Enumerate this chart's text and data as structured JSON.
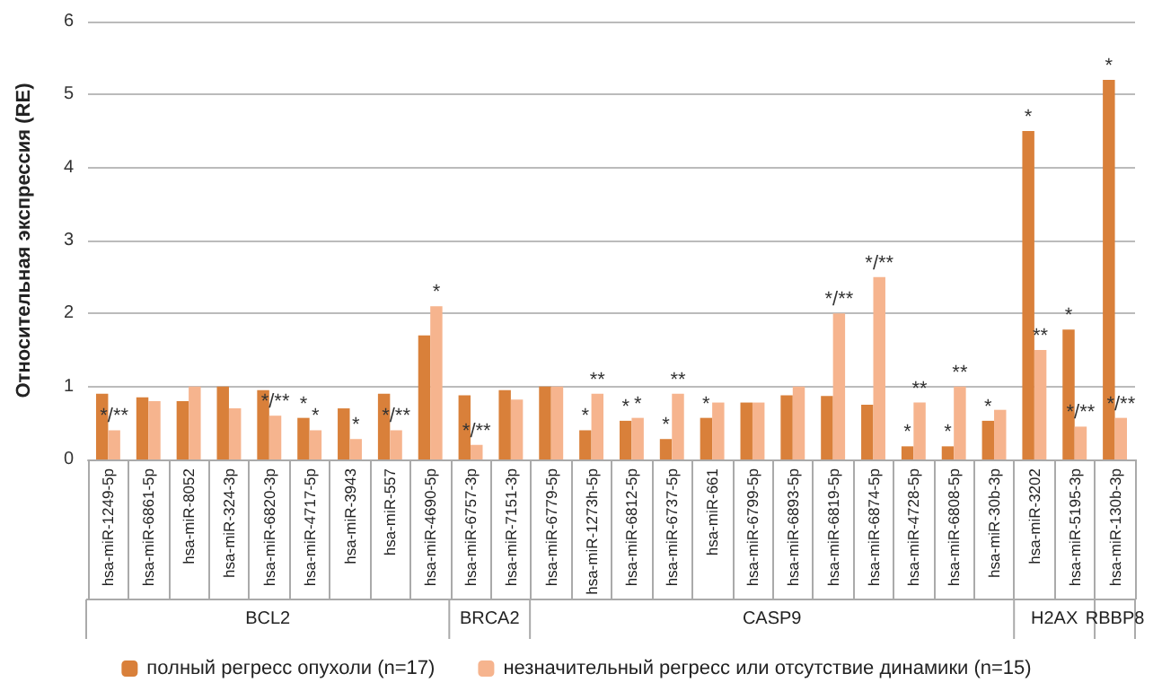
{
  "chart_data": {
    "type": "bar",
    "ylabel": "Относительная экспрессия (RE)",
    "categories": [
      "hsa-miR-1249-5p",
      "hsa-miR-6861-5p",
      "hsa-miR-8052",
      "hsa-miR-324-3p",
      "hsa-miR-6820-3p",
      "hsa-miR-4717-5p",
      "hsa-miR-3943",
      "hsa-miR-557",
      "hsa-miR-4690-5p",
      "hsa-miR-6757-3p",
      "hsa-miR-7151-3p",
      "hsa-miR-6779-5p",
      "hsa-miR-1273h-5p",
      "hsa-miR-6812-5p",
      "hsa-miR-6737-5p",
      "hsa-miR-661",
      "hsa-miR-6799-5p",
      "hsa-miR-6893-5p",
      "hsa-miR-6819-5p",
      "hsa-miR-6874-5p",
      "hsa-miR-4728-5p",
      "hsa-miR-6808-5p",
      "hsa-miR-30b-3p",
      "hsa-miR-3202",
      "hsa-miR-5195-3p",
      "hsa-miR-130b-3p"
    ],
    "series": [
      {
        "name": "полный регресс опухоли (n=17)",
        "color": "#d9803a",
        "values": [
          0.9,
          0.85,
          0.8,
          1.0,
          0.95,
          0.57,
          0.7,
          0.9,
          1.7,
          0.88,
          0.95,
          1.0,
          0.4,
          0.53,
          0.28,
          0.57,
          0.78,
          0.88,
          0.87,
          0.75,
          0.18,
          0.18,
          0.53,
          4.5,
          1.78,
          5.2
        ]
      },
      {
        "name": "незначительный регресс или отсутствие динамики (n=15)",
        "color": "#f6b48e",
        "values": [
          0.4,
          0.8,
          1.0,
          0.7,
          0.6,
          0.4,
          0.28,
          0.4,
          2.1,
          0.2,
          0.82,
          1.0,
          0.9,
          0.57,
          0.9,
          0.78,
          0.78,
          1.0,
          2.0,
          2.5,
          0.78,
          1.0,
          0.68,
          1.5,
          0.45,
          0.57
        ]
      }
    ],
    "ylim": [
      0,
      6
    ],
    "yticks": [
      0,
      1,
      2,
      3,
      4,
      5,
      6
    ],
    "grid": "y",
    "legend": "bottom",
    "annotations": [
      "BCL2",
      "BRCA2",
      "CASP9",
      "H2AX",
      "RBBP8",
      {
        "text": "*/**",
        "x": "hsa-miR-1249-5p",
        "y": 0.4
      },
      {
        "text": "*/**",
        "x": "hsa-miR-6820-3p",
        "y": 0.6
      },
      {
        "text": "*",
        "x": "hsa-miR-4717-5p",
        "y": 0.57
      },
      {
        "text": "*",
        "x": "hsa-miR-4717-5p",
        "y": 0.4
      },
      {
        "text": "*",
        "x": "hsa-miR-3943",
        "y": 0.28
      },
      {
        "text": "*/**",
        "x": "hsa-miR-557",
        "y": 0.4
      },
      {
        "text": "*",
        "x": "hsa-miR-4690-5p",
        "y": 2.1
      },
      {
        "text": "*/**",
        "x": "hsa-miR-6757-3p",
        "y": 0.2
      },
      {
        "text": "*",
        "x": "hsa-miR-1273h-5p",
        "y": 0.4
      },
      {
        "text": "**",
        "x": "hsa-miR-1273h-5p",
        "y": 0.9
      },
      {
        "text": "*",
        "x": "hsa-miR-6812-5p",
        "y": 0.53
      },
      {
        "text": "*",
        "x": "hsa-miR-6812-5p",
        "y": 0.57
      },
      {
        "text": "*",
        "x": "hsa-miR-6737-5p",
        "y": 0.28
      },
      {
        "text": "**",
        "x": "hsa-miR-6737-5p",
        "y": 0.9
      },
      {
        "text": "*",
        "x": "hsa-miR-661",
        "y": 0.57
      },
      {
        "text": "*/**",
        "x": "hsa-miR-6819-5p",
        "y": 2.0
      },
      {
        "text": "*/**",
        "x": "hsa-miR-6874-5p",
        "y": 2.5
      },
      {
        "text": "*",
        "x": "hsa-miR-4728-5p",
        "y": 0.18
      },
      {
        "text": "**",
        "x": "hsa-miR-4728-5p",
        "y": 0.78
      },
      {
        "text": "*",
        "x": "hsa-miR-6808-5p",
        "y": 0.18
      },
      {
        "text": "**",
        "x": "hsa-miR-6808-5p",
        "y": 1.0
      },
      {
        "text": "*",
        "x": "hsa-miR-30b-3p",
        "y": 0.53
      },
      {
        "text": "*",
        "x": "hsa-miR-3202",
        "y": 4.5
      },
      {
        "text": "**",
        "x": "hsa-miR-3202",
        "y": 1.5
      },
      {
        "text": "*",
        "x": "hsa-miR-5195-3p",
        "y": 1.78
      },
      {
        "text": "*/**",
        "x": "hsa-miR-5195-3p",
        "y": 0.45
      },
      {
        "text": "*",
        "x": "hsa-miR-130b-3p",
        "y": 5.2
      },
      {
        "text": "*/**",
        "x": "hsa-miR-130b-3p",
        "y": 0.57
      }
    ]
  }
}
